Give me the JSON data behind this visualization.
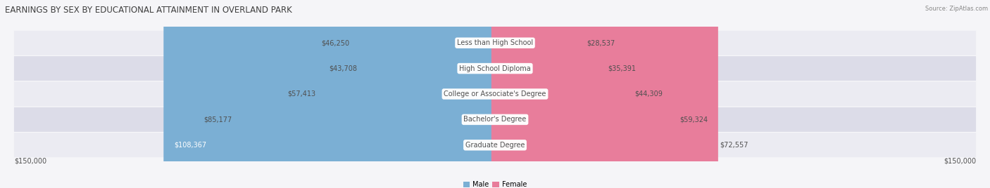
{
  "title": "EARNINGS BY SEX BY EDUCATIONAL ATTAINMENT IN OVERLAND PARK",
  "source": "Source: ZipAtlas.com",
  "categories": [
    "Less than High School",
    "High School Diploma",
    "College or Associate's Degree",
    "Bachelor's Degree",
    "Graduate Degree"
  ],
  "male_values": [
    46250,
    43708,
    57413,
    85177,
    108367
  ],
  "female_values": [
    28537,
    35391,
    44309,
    59324,
    72557
  ],
  "male_color": "#7bafd4",
  "female_color": "#e87d9b",
  "male_label": "Male",
  "female_label": "Female",
  "max_value": 150000,
  "title_fontsize": 8.5,
  "label_fontsize": 7,
  "value_fontsize": 7,
  "axis_label": "$150,000",
  "title_color": "#404040",
  "text_color": "#505050",
  "bg_light": "#ebebf2",
  "bg_dark": "#dcdce8",
  "fig_bg": "#f5f5f8"
}
